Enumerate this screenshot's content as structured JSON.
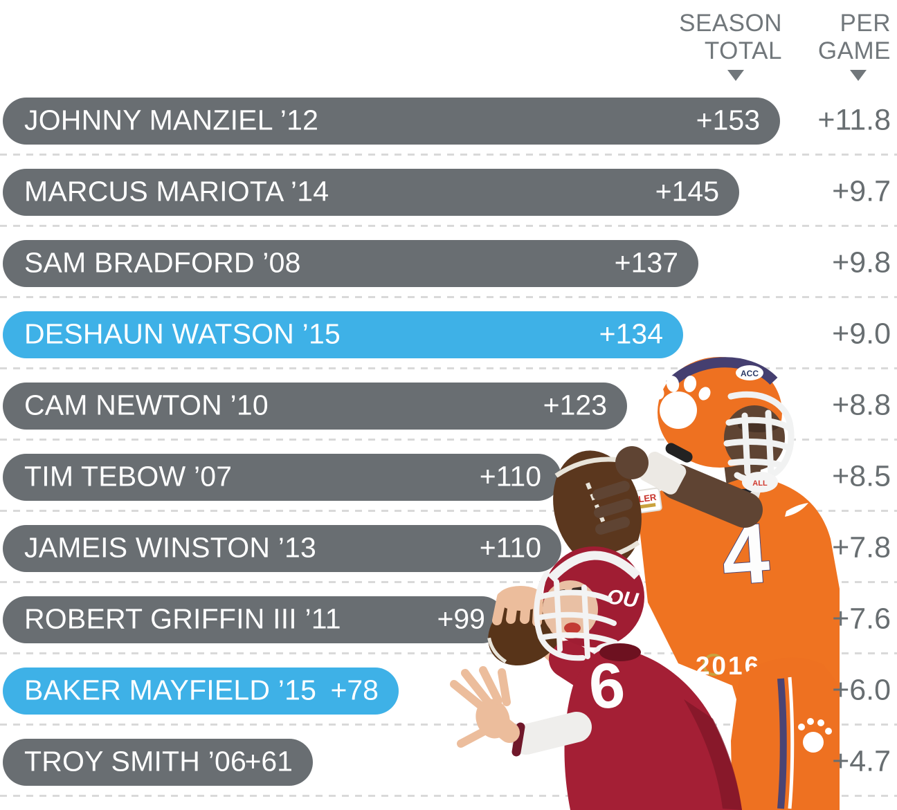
{
  "header": {
    "season_total": {
      "line1": "SEASON",
      "line2": "TOTAL"
    },
    "per_game": {
      "line1": "PER",
      "line2": "GAME"
    }
  },
  "chart_data": {
    "type": "bar",
    "orientation": "horizontal",
    "columns": [
      "SEASON TOTAL",
      "PER GAME"
    ],
    "bar_color": "#696e72",
    "highlight_color": "#3eb1e7",
    "x_range": [
      0,
      160
    ],
    "rows": [
      {
        "label": "JOHNNY MANZIEL ’12",
        "season_total": 153,
        "season_total_label": "+153",
        "per_game": 11.8,
        "per_game_label": "+11.8",
        "highlight": false
      },
      {
        "label": "MARCUS MARIOTA ’14",
        "season_total": 145,
        "season_total_label": "+145",
        "per_game": 9.7,
        "per_game_label": "+9.7",
        "highlight": false
      },
      {
        "label": "SAM BRADFORD ’08",
        "season_total": 137,
        "season_total_label": "+137",
        "per_game": 9.8,
        "per_game_label": "+9.8",
        "highlight": false
      },
      {
        "label": "DESHAUN WATSON ’15",
        "season_total": 134,
        "season_total_label": "+134",
        "per_game": 9.0,
        "per_game_label": "+9.0",
        "highlight": true
      },
      {
        "label": "CAM NEWTON ’10",
        "season_total": 123,
        "season_total_label": "+123",
        "per_game": 8.8,
        "per_game_label": "+8.8",
        "highlight": false
      },
      {
        "label": "TIM TEBOW ’07",
        "season_total": 110,
        "season_total_label": "+110",
        "per_game": 8.5,
        "per_game_label": "+8.5",
        "highlight": false
      },
      {
        "label": "JAMEIS WINSTON ’13",
        "season_total": 110,
        "season_total_label": "+110",
        "per_game": 7.8,
        "per_game_label": "+7.8",
        "highlight": false
      },
      {
        "label": "ROBERT GRIFFIN III ’11",
        "season_total": 99,
        "season_total_label": "+99",
        "per_game": 7.6,
        "per_game_label": "+7.6",
        "highlight": false
      },
      {
        "label": "BAKER MAYFIELD ’15",
        "season_total": 78,
        "season_total_label": "+78",
        "per_game": 6.0,
        "per_game_label": "+6.0",
        "highlight": true
      },
      {
        "label": "TROY SMITH ’06",
        "season_total": 61,
        "season_total_label": "+61",
        "per_game": 4.7,
        "per_game_label": "+4.7",
        "highlight": false
      }
    ]
  },
  "photo": {
    "watson_jersey_number": "4",
    "mayfield_jersey_number": "6",
    "patch_year": "2016",
    "helmet_logo": "OU",
    "helmet_sticker": "ACC",
    "chin_strap_text": "ALL",
    "jersey_patch_text": "ULLER"
  }
}
